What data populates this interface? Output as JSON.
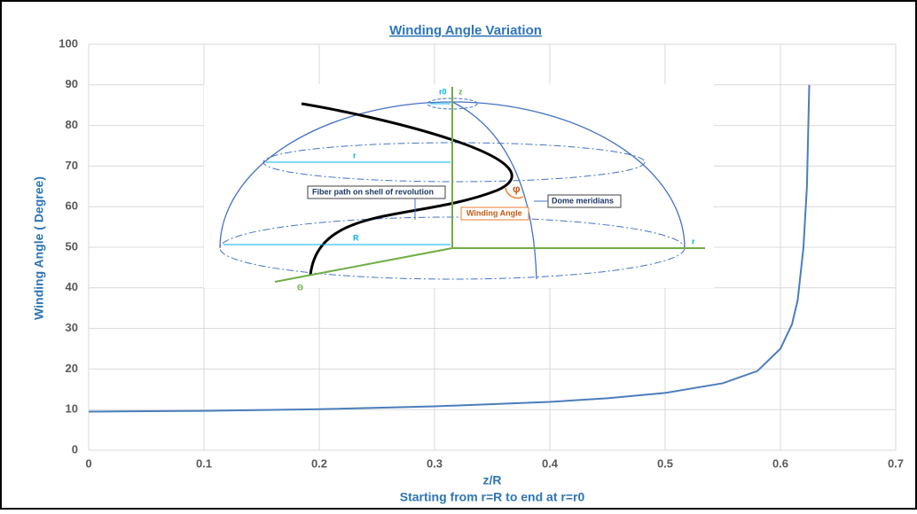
{
  "chart_data": {
    "type": "line",
    "title": "Winding Angle Variation",
    "x_label": "z/R",
    "x_sublabel": "Starting from r=R to end at r=r0",
    "y_label": "Winding Angle ( Degree)",
    "x": [
      0,
      0.1,
      0.2,
      0.3,
      0.4,
      0.45,
      0.5,
      0.55,
      0.58,
      0.6,
      0.61,
      0.615,
      0.62,
      0.623,
      0.625
    ],
    "series": [
      {
        "name": "Winding Angle",
        "color": "#4a7ebb",
        "values": [
          9.5,
          9.7,
          10.1,
          10.8,
          11.9,
          12.8,
          14.1,
          16.5,
          19.5,
          25,
          31,
          37,
          50,
          65,
          90
        ]
      }
    ],
    "xlim": [
      0,
      0.7
    ],
    "xticks": [
      0,
      0.1,
      0.2,
      0.3,
      0.4,
      0.5,
      0.6,
      0.7
    ],
    "ylim": [
      0,
      100
    ],
    "yticks": [
      0,
      10,
      20,
      30,
      40,
      50,
      60,
      70,
      80,
      90,
      100
    ],
    "grid": true,
    "inset": {
      "labels": [
        "r0",
        "z",
        "r",
        "Fiber path on shell of revolution",
        "φ",
        "Dome meridians",
        "Winding Angle",
        "R",
        "r",
        "Θ"
      ]
    }
  }
}
